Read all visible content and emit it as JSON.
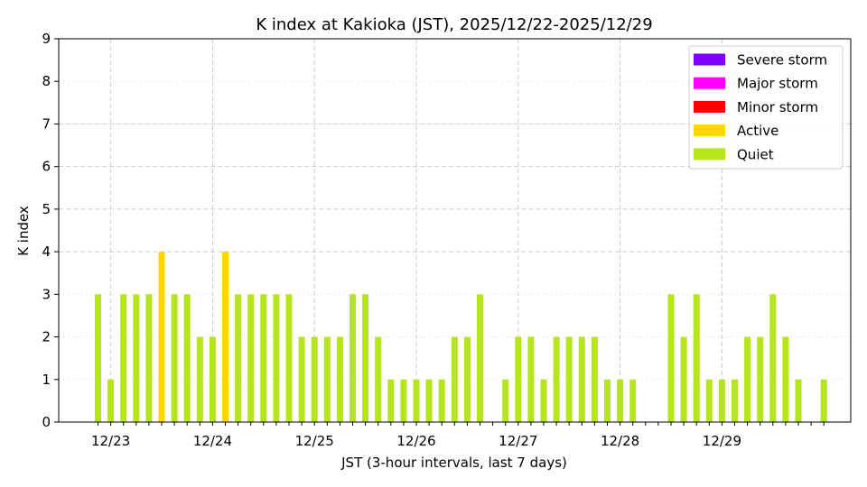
{
  "chart_data": {
    "type": "bar",
    "title": "K index at Kakioka (JST), 2025/12/22-2025/12/29",
    "xlabel": "JST (3-hour intervals, last 7 days)",
    "ylabel": "K index",
    "ylim": [
      0,
      9
    ],
    "yticks": [
      0,
      1,
      2,
      3,
      4,
      5,
      6,
      7,
      8,
      9
    ],
    "xticks": [
      {
        "label": "12/23",
        "index": 1
      },
      {
        "label": "12/24",
        "index": 9
      },
      {
        "label": "12/25",
        "index": 17
      },
      {
        "label": "12/26",
        "index": 25
      },
      {
        "label": "12/27",
        "index": 33
      },
      {
        "label": "12/28",
        "index": 41
      },
      {
        "label": "12/29",
        "index": 49
      }
    ],
    "interval_hours": 3,
    "values": [
      3,
      1,
      3,
      3,
      3,
      4,
      3,
      3,
      2,
      2,
      4,
      3,
      3,
      3,
      3,
      3,
      2,
      2,
      2,
      2,
      3,
      3,
      2,
      1,
      1,
      1,
      1,
      1,
      2,
      2,
      3,
      null,
      1,
      2,
      2,
      1,
      2,
      2,
      2,
      2,
      1,
      1,
      1,
      null,
      null,
      3,
      2,
      3,
      1,
      1,
      1,
      2,
      2,
      3,
      2,
      1,
      null,
      1
    ],
    "legend": {
      "position": "top-right",
      "entries": [
        {
          "label": "Severe storm",
          "color": "#7f00ff"
        },
        {
          "label": "Major storm",
          "color": "#ff00ff"
        },
        {
          "label": "Minor storm",
          "color": "#ff0000"
        },
        {
          "label": "Active",
          "color": "#ffd700"
        },
        {
          "label": "Quiet",
          "color": "#b5e61d"
        }
      ]
    },
    "color_rule": [
      {
        "min": 0,
        "max": 3,
        "color": "#b5e61d"
      },
      {
        "min": 4,
        "max": 4,
        "color": "#ffd700"
      },
      {
        "min": 5,
        "max": 5,
        "color": "#ff0000"
      },
      {
        "min": 6,
        "max": 6,
        "color": "#ff00ff"
      },
      {
        "min": 7,
        "max": 9,
        "color": "#7f00ff"
      }
    ],
    "grid": {
      "x": true,
      "y": true,
      "style": "dashed"
    }
  }
}
